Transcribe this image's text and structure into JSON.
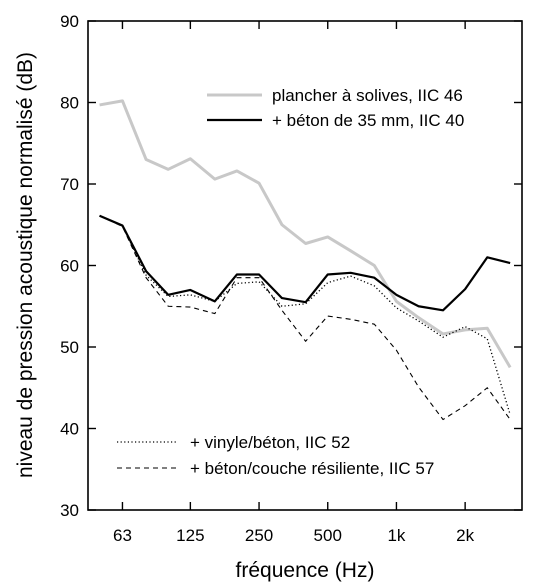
{
  "chart_data": {
    "type": "line",
    "xlabel": "fréquence (Hz)",
    "ylabel": "niveau de pression acoustique normalisé (dB)",
    "x": [
      50,
      63,
      80,
      100,
      125,
      160,
      200,
      250,
      315,
      400,
      500,
      630,
      800,
      1000,
      1250,
      1600,
      2000,
      2500,
      3150
    ],
    "xscale": "log",
    "xticks": [
      {
        "value": 63,
        "label": "63"
      },
      {
        "value": 125,
        "label": "125"
      },
      {
        "value": 250,
        "label": "250"
      },
      {
        "value": 500,
        "label": "500"
      },
      {
        "value": 1000,
        "label": "1k"
      },
      {
        "value": 2000,
        "label": "2k"
      }
    ],
    "ylim": [
      30,
      90
    ],
    "yticks": [
      30,
      40,
      50,
      60,
      70,
      80,
      90
    ],
    "grid": false,
    "legend_placement": "top-right and bottom-left",
    "series": [
      {
        "name": "plancher à solives, IIC 46",
        "color": "#c8c8c8",
        "style": "solid",
        "values": [
          79.7,
          80.2,
          73.0,
          71.8,
          73.1,
          70.6,
          71.6,
          70.1,
          65.0,
          62.7,
          63.5,
          61.8,
          60.0,
          55.6,
          53.6,
          51.6,
          52.1,
          52.3,
          47.5
        ]
      },
      {
        "name": "+ béton de 35 mm, IIC 40",
        "color": "#000000",
        "style": "solid",
        "values": [
          66.1,
          64.9,
          59.3,
          56.4,
          57.0,
          55.6,
          58.9,
          58.9,
          56.0,
          55.5,
          58.9,
          59.1,
          58.5,
          56.4,
          55.0,
          54.5,
          57.1,
          61.0,
          60.3
        ]
      },
      {
        "name": "+ vinyle/béton, IIC  52",
        "color": "#000000",
        "style": "dotted",
        "values": [
          66.1,
          64.9,
          58.8,
          56.2,
          56.4,
          55.6,
          57.8,
          58.0,
          55.0,
          55.3,
          57.9,
          58.7,
          57.5,
          54.8,
          53.2,
          51.2,
          52.5,
          51.0,
          41.7
        ]
      },
      {
        "name": "+ béton/couche résiliente, IIC 57",
        "color": "#000000",
        "style": "dashed",
        "values": [
          66.1,
          64.8,
          58.5,
          55.0,
          54.9,
          54.1,
          58.5,
          58.5,
          54.5,
          50.7,
          53.8,
          53.4,
          52.8,
          49.6,
          45.1,
          41.1,
          42.8,
          45.0,
          41.1
        ]
      }
    ]
  }
}
